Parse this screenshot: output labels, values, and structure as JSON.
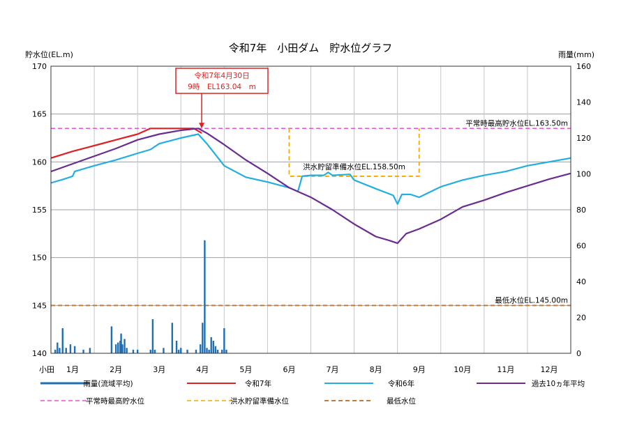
{
  "colors": {
    "rain": "#1f6fb5",
    "r7": "#e02020",
    "r6": "#21aee0",
    "avg10": "#6a2c91",
    "normal_max": "#e84fd6",
    "flood": "#f2a900",
    "min_level": "#c07a3a",
    "callout": "#e02020",
    "grid": "#bfc7cf",
    "grid_h": "#9aa0a6"
  },
  "chart_data": {
    "type": "line",
    "title": "令和7年　小田ダム　貯水位グラフ",
    "ylabel": "貯水位(EL.m)",
    "y2label": "雨量(mm)",
    "ylim": [
      140,
      170
    ],
    "y2lim": [
      0,
      160
    ],
    "yticks": [
      140,
      145,
      150,
      155,
      160,
      165,
      170
    ],
    "y2ticks": [
      0,
      20,
      40,
      60,
      80,
      100,
      120,
      140,
      160
    ],
    "x_range": [
      1,
      13
    ],
    "months": [
      "1月",
      "2月",
      "3月",
      "4月",
      "5月",
      "6月",
      "7月",
      "8月",
      "9月",
      "10月",
      "11月",
      "12月"
    ],
    "x_prefix": "小田",
    "grid": true,
    "reference_lines": [
      {
        "name": "平常時最高貯水位",
        "label": "平常時最高貯水位EL.163.50m",
        "y": 163.5
      },
      {
        "name": "最低水位",
        "label": "最低水位EL.145.00m",
        "y": 145.0
      }
    ],
    "flood_label": "洪水貯留準備水位EL.158.50m",
    "flood_season": {
      "x_start": 6.5,
      "x_end": 9.5,
      "y": 158.5,
      "base_y": 163.5
    },
    "callout": {
      "line1": "令和7年4月30日",
      "line2": "9時　EL163.04　m",
      "x": 4.48,
      "y": 163.5
    },
    "series": [
      {
        "name": "令和7年",
        "key": "r7",
        "x": [
          1.0,
          1.5,
          2.0,
          2.5,
          3.0,
          3.3,
          3.6,
          4.0,
          4.3,
          4.48
        ],
        "y": [
          160.4,
          161.1,
          161.7,
          162.3,
          162.9,
          163.5,
          163.5,
          163.5,
          163.5,
          163.0
        ]
      },
      {
        "name": "令和6年",
        "key": "r6",
        "x": [
          1.0,
          1.3,
          1.5,
          1.55,
          2.0,
          2.5,
          3.0,
          3.3,
          3.5,
          4.0,
          4.4,
          4.6,
          5.0,
          5.5,
          6.0,
          6.5,
          6.7,
          6.8,
          7.0,
          7.3,
          7.4,
          7.5,
          7.9,
          8.0,
          8.5,
          8.9,
          9.0,
          9.1,
          9.3,
          9.5,
          10.0,
          10.5,
          11.0,
          11.5,
          12.0,
          12.5,
          13.0
        ],
        "y": [
          157.8,
          158.2,
          158.5,
          159.0,
          159.6,
          160.2,
          160.9,
          161.3,
          161.9,
          162.5,
          162.9,
          161.9,
          159.6,
          158.4,
          157.9,
          157.3,
          156.9,
          158.5,
          158.6,
          158.6,
          158.9,
          158.6,
          158.7,
          158.1,
          157.2,
          156.5,
          155.6,
          156.6,
          156.6,
          156.3,
          157.4,
          158.1,
          158.6,
          159.0,
          159.6,
          160.0,
          160.4
        ]
      },
      {
        "name": "過去10ヵ年平均",
        "key": "avg10",
        "x": [
          1.0,
          1.5,
          2.0,
          2.5,
          3.0,
          3.5,
          4.0,
          4.4,
          4.6,
          5.0,
          5.5,
          6.0,
          6.5,
          7.0,
          7.5,
          8.0,
          8.5,
          8.8,
          9.0,
          9.2,
          9.5,
          10.0,
          10.5,
          11.0,
          11.5,
          12.0,
          12.5,
          13.0
        ],
        "y": [
          159.0,
          159.8,
          160.6,
          161.4,
          162.3,
          162.9,
          163.3,
          163.5,
          163.0,
          161.8,
          160.2,
          158.8,
          157.3,
          156.3,
          155.0,
          153.5,
          152.2,
          151.8,
          151.5,
          152.5,
          153.0,
          154.0,
          155.3,
          156.0,
          156.8,
          157.5,
          158.2,
          158.8
        ]
      }
    ],
    "rain": {
      "name": "雨量(流域平均)",
      "x": [
        1.1,
        1.15,
        1.2,
        1.27,
        1.35,
        1.45,
        1.55,
        1.75,
        1.9,
        2.4,
        2.5,
        2.55,
        2.6,
        2.62,
        2.65,
        2.7,
        2.75,
        2.9,
        3.0,
        3.3,
        3.35,
        3.4,
        3.6,
        3.8,
        3.9,
        3.95,
        4.0,
        4.15,
        4.35,
        4.45,
        4.5,
        4.55,
        4.6,
        4.65,
        4.7,
        4.75,
        4.8,
        4.85,
        4.95,
        5.0,
        5.05
      ],
      "y": [
        2,
        6,
        3,
        14,
        3,
        5,
        4,
        2,
        3,
        15,
        5,
        6,
        7,
        11,
        5,
        8,
        3,
        2,
        2,
        2,
        19,
        2,
        3,
        17,
        7,
        2,
        3,
        2,
        2,
        5,
        17,
        63,
        3,
        2,
        9,
        7,
        4,
        2,
        2,
        14,
        2
      ]
    }
  },
  "legend": [
    {
      "key": "rain",
      "label": "雨量(流域平均)",
      "style": "solid",
      "width": 3
    },
    {
      "key": "r7",
      "label": "令和7年",
      "style": "solid",
      "width": 2
    },
    {
      "key": "r6",
      "label": "令和6年",
      "style": "solid",
      "width": 2
    },
    {
      "key": "avg10",
      "label": "過去10ヵ年平均",
      "style": "solid",
      "width": 2
    },
    {
      "key": "normal_max",
      "label": "平常時最高貯水位",
      "style": "dash",
      "width": 1.5
    },
    {
      "key": "flood",
      "label": "洪水貯留準備水位",
      "style": "dash",
      "width": 1.5
    },
    {
      "key": "min_level",
      "label": "最低水位",
      "style": "dash",
      "width": 2
    }
  ]
}
